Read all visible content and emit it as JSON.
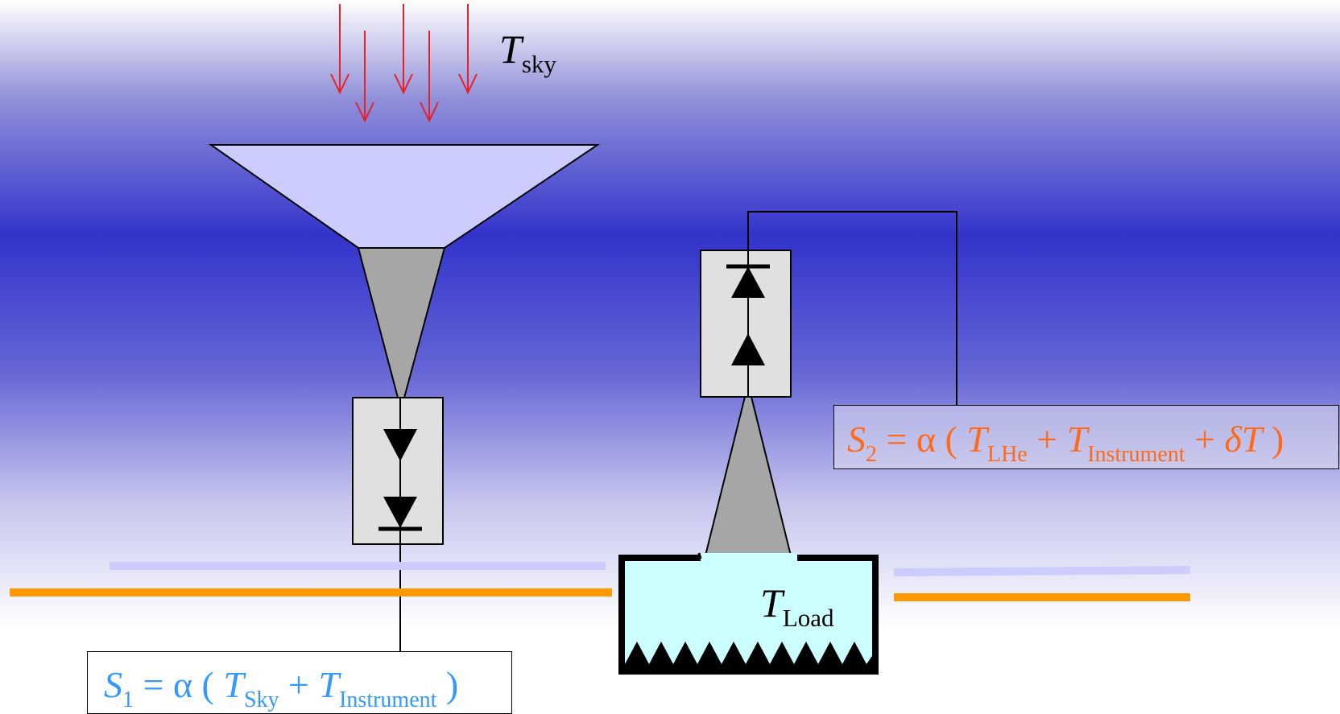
{
  "labels": {
    "t_sky": {
      "symbol": "T",
      "subscript": "sky"
    },
    "t_load": {
      "symbol": "T",
      "subscript": "Load"
    }
  },
  "equations": {
    "s1": {
      "lhs": "S",
      "lhs_sub": "1",
      "eq": " = α ( ",
      "t1": "T",
      "t1_sub": "Sky",
      "plus": " + ",
      "t2": "T",
      "t2_sub": "Instrument",
      "close": " )",
      "color": "#3399ff"
    },
    "s2": {
      "lhs": "S",
      "lhs_sub": "2",
      "eq": " = α ( ",
      "t1": "T",
      "t1_sub": "LHe",
      "plus1": " + ",
      "t2": "T",
      "t2_sub": "Instrument",
      "plus2": " + ",
      "delta": "δT",
      "close": " )",
      "color": "#ff6a1a"
    }
  },
  "colors": {
    "sky_arrows": "#e8202a",
    "horn_fill": "#ccccff",
    "waveguide_fill": "#a6a6a6",
    "detector_box_fill": "#e0e0e0",
    "load_fill": "#ccffff",
    "lavender_line": "#ccccff",
    "orange_line": "#ff9900"
  }
}
